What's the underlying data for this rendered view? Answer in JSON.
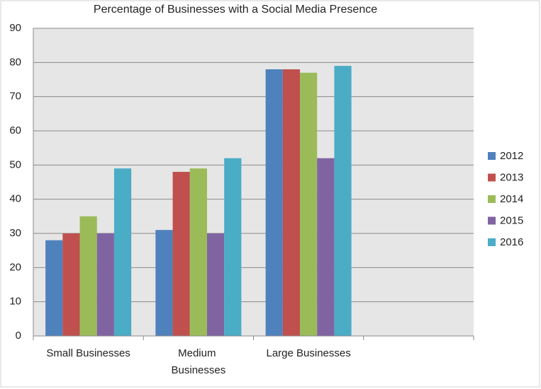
{
  "chart_data": {
    "type": "bar",
    "title": "Percentage of Businesses with a Social Media Presence",
    "categories": [
      "Small Businesses",
      "Medium Businesses",
      "Large Businesses",
      null
    ],
    "series": [
      {
        "name": "2012",
        "color": "#4f81bd",
        "values": [
          28,
          31,
          78,
          null
        ]
      },
      {
        "name": "2013",
        "color": "#c0504d",
        "values": [
          30,
          48,
          78,
          null
        ]
      },
      {
        "name": "2014",
        "color": "#9bbb59",
        "values": [
          35,
          49,
          77,
          null
        ]
      },
      {
        "name": "2015",
        "color": "#8064a2",
        "values": [
          30,
          30,
          52,
          null
        ]
      },
      {
        "name": "2016",
        "color": "#4bacc6",
        "values": [
          49,
          52,
          79,
          null
        ]
      }
    ],
    "ylim": [
      0,
      90
    ],
    "yticks": [
      0,
      10,
      20,
      30,
      40,
      50,
      60,
      70,
      80,
      90
    ],
    "grid": true,
    "legend": "right"
  }
}
